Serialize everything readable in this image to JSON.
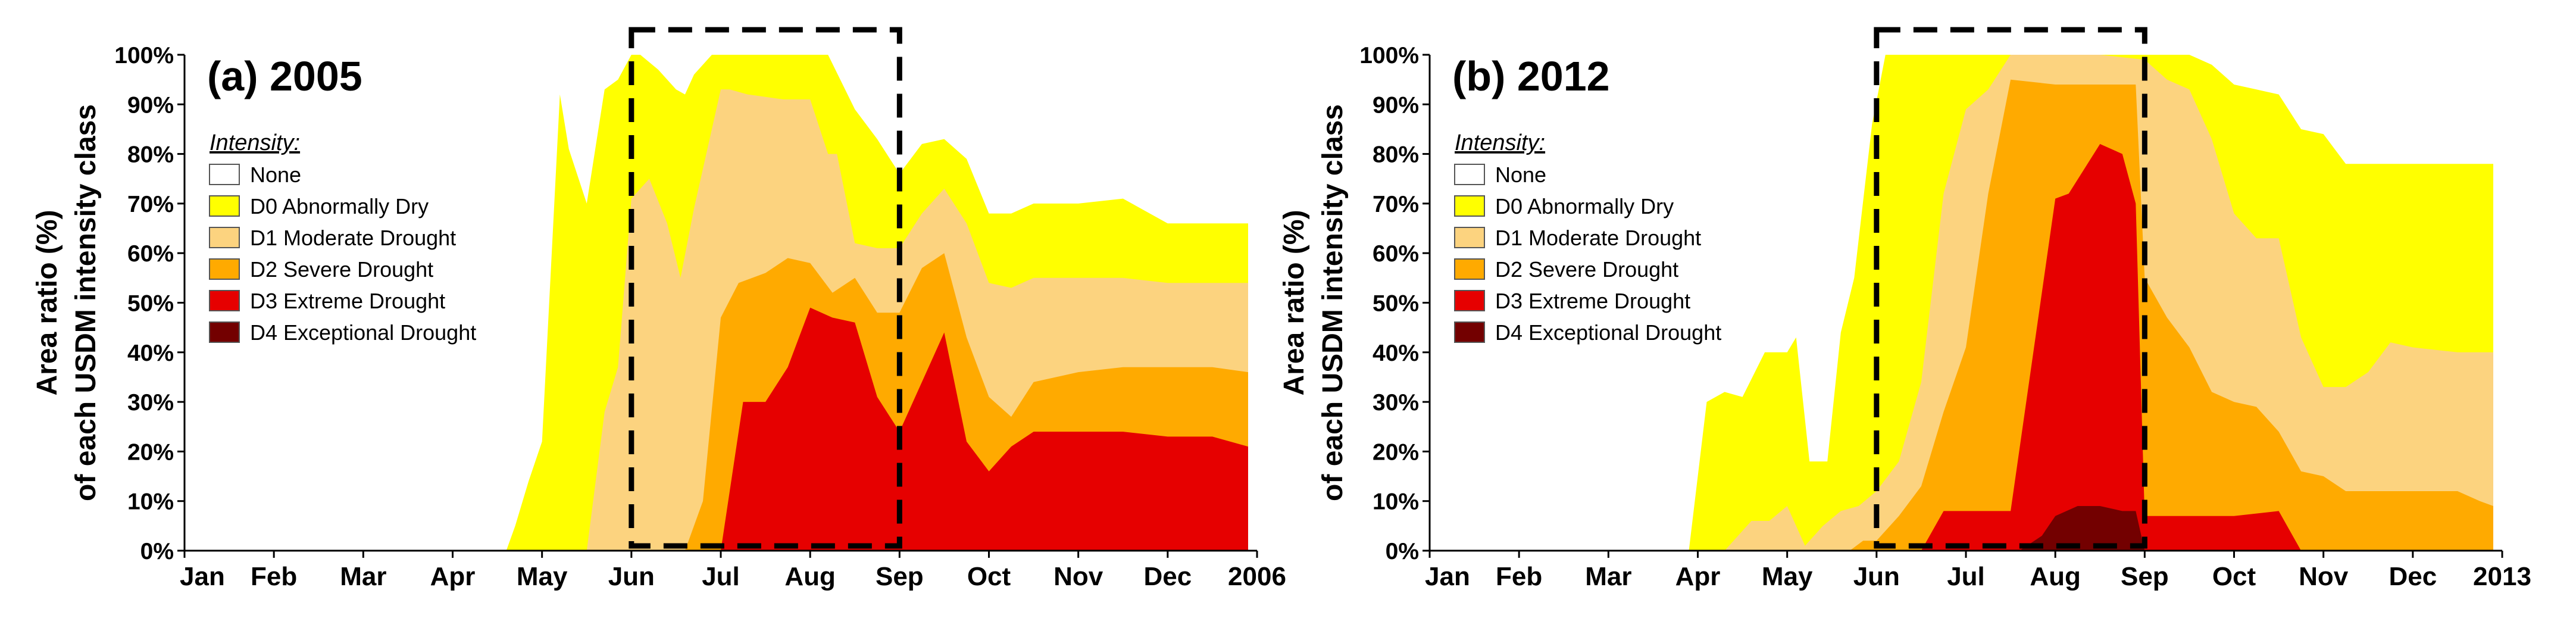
{
  "figure": {
    "ylabel_line1": "Area ratio (%)",
    "ylabel_line2": "of each USDM intensity class"
  },
  "chart_data": [
    {
      "type": "area",
      "title": "(a) 2005",
      "ylim": [
        0,
        100
      ],
      "yticks": [
        "0%",
        "10%",
        "20%",
        "30%",
        "40%",
        "50%",
        "60%",
        "70%",
        "80%",
        "90%",
        "100%"
      ],
      "xlim": [
        0,
        12
      ],
      "xticks": [
        {
          "pos": 0,
          "label": "Jan"
        },
        {
          "pos": 1,
          "label": "Feb"
        },
        {
          "pos": 2,
          "label": "Mar"
        },
        {
          "pos": 3,
          "label": "Apr"
        },
        {
          "pos": 4,
          "label": "May"
        },
        {
          "pos": 5,
          "label": "Jun"
        },
        {
          "pos": 6,
          "label": "Jul"
        },
        {
          "pos": 7,
          "label": "Aug"
        },
        {
          "pos": 8,
          "label": "Sep"
        },
        {
          "pos": 9,
          "label": "Oct"
        },
        {
          "pos": 10,
          "label": "Nov"
        },
        {
          "pos": 11,
          "label": "Dec"
        },
        {
          "pos": 12,
          "label": "2006"
        }
      ],
      "legend": {
        "title": "Intensity:",
        "placement": "top-left",
        "items": [
          {
            "label": "None",
            "color": "#ffffff"
          },
          {
            "label": "D0 Abnormally Dry",
            "color": "#ffff00"
          },
          {
            "label": "D1 Moderate Drought",
            "color": "#fcd37f"
          },
          {
            "label": "D2 Severe Drought",
            "color": "#ffaa00"
          },
          {
            "label": "D3 Extreme Drought",
            "color": "#e60000"
          },
          {
            "label": "D4 Exceptional Drought",
            "color": "#730000"
          }
        ]
      },
      "highlight_box": {
        "x_start": 5.0,
        "x_end": 8.0,
        "y_start": 0,
        "y_end": 100,
        "style": "dashed"
      },
      "series": [
        {
          "name": "D0 Abnormally Dry",
          "color": "#ffff00",
          "x": [
            3.6,
            3.7,
            3.85,
            4.0,
            4.2,
            4.3,
            4.5,
            4.7,
            4.85,
            5.0,
            5.1,
            5.3,
            5.5,
            5.6,
            5.7,
            5.9,
            6.1,
            6.5,
            6.9,
            7.2,
            7.5,
            7.75,
            8.0,
            8.25,
            8.5,
            8.75,
            9.0,
            9.25,
            9.5,
            10.0,
            10.5,
            11.0,
            11.5,
            11.9
          ],
          "y": [
            0,
            5,
            14,
            22,
            92,
            81,
            70,
            93,
            95,
            100,
            100,
            97,
            93,
            92,
            96,
            100,
            100,
            100,
            100,
            100,
            89,
            83,
            76,
            82,
            83,
            79,
            68,
            68,
            70,
            70,
            71,
            66,
            66,
            66
          ]
        },
        {
          "name": "D1 Moderate Drought",
          "color": "#fcd37f",
          "x": [
            4.0,
            4.3,
            4.5,
            4.7,
            4.85,
            5.0,
            5.2,
            5.4,
            5.55,
            5.7,
            6.0,
            6.1,
            6.3,
            6.7,
            7.0,
            7.2,
            7.3,
            7.5,
            7.75,
            8.0,
            8.25,
            8.5,
            8.75,
            9.0,
            9.25,
            9.5,
            10.0,
            10.5,
            11.0,
            11.5,
            11.9
          ],
          "y": [
            0,
            0,
            0,
            28,
            37,
            71,
            75,
            66,
            55,
            69,
            93,
            93,
            92,
            91,
            91,
            80,
            80,
            62,
            61,
            61,
            68,
            73,
            66,
            54,
            53,
            55,
            55,
            55,
            54,
            54,
            54
          ]
        },
        {
          "name": "D2 Severe Drought",
          "color": "#ffaa00",
          "x": [
            5.5,
            5.6,
            5.8,
            6.0,
            6.2,
            6.5,
            6.75,
            7.0,
            7.25,
            7.5,
            7.75,
            8.0,
            8.25,
            8.5,
            8.75,
            9.0,
            9.25,
            9.5,
            10.0,
            10.5,
            11.0,
            11.5,
            11.9
          ],
          "y": [
            0,
            0,
            10,
            47,
            54,
            56,
            59,
            58,
            52,
            55,
            48,
            48,
            57,
            60,
            43,
            31,
            27,
            34,
            36,
            37,
            37,
            37,
            36
          ]
        },
        {
          "name": "D3 Extreme Drought",
          "color": "#e60000",
          "x": [
            5.9,
            6.0,
            6.25,
            6.5,
            6.75,
            7.0,
            7.25,
            7.5,
            7.75,
            8.0,
            8.25,
            8.5,
            8.75,
            9.0,
            9.25,
            9.5,
            10.0,
            10.5,
            11.0,
            11.5,
            11.9
          ],
          "y": [
            0,
            0,
            30,
            30,
            37,
            49,
            47,
            46,
            31,
            24,
            34,
            44,
            22,
            16,
            21,
            24,
            24,
            24,
            23,
            23,
            21
          ]
        }
      ]
    },
    {
      "type": "area",
      "title": "(b) 2012",
      "ylim": [
        0,
        100
      ],
      "yticks": [
        "0%",
        "10%",
        "20%",
        "30%",
        "40%",
        "50%",
        "60%",
        "70%",
        "80%",
        "90%",
        "100%"
      ],
      "xlim": [
        0,
        12
      ],
      "xticks": [
        {
          "pos": 0,
          "label": "Jan"
        },
        {
          "pos": 1,
          "label": "Feb"
        },
        {
          "pos": 2,
          "label": "Mar"
        },
        {
          "pos": 3,
          "label": "Apr"
        },
        {
          "pos": 4,
          "label": "May"
        },
        {
          "pos": 5,
          "label": "Jun"
        },
        {
          "pos": 6,
          "label": "Jul"
        },
        {
          "pos": 7,
          "label": "Aug"
        },
        {
          "pos": 8,
          "label": "Sep"
        },
        {
          "pos": 9,
          "label": "Oct"
        },
        {
          "pos": 10,
          "label": "Nov"
        },
        {
          "pos": 11,
          "label": "Dec"
        },
        {
          "pos": 12,
          "label": "2013"
        }
      ],
      "legend": {
        "title": "Intensity:",
        "placement": "top-left",
        "items": [
          {
            "label": "None",
            "color": "#ffffff"
          },
          {
            "label": "D0 Abnormally Dry",
            "color": "#ffff00"
          },
          {
            "label": "D1 Moderate Drought",
            "color": "#fcd37f"
          },
          {
            "label": "D2 Severe Drought",
            "color": "#ffaa00"
          },
          {
            "label": "D3 Extreme Drought",
            "color": "#e60000"
          },
          {
            "label": "D4 Exceptional Drought",
            "color": "#730000"
          }
        ]
      },
      "highlight_box": {
        "x_start": 5.0,
        "x_end": 8.0,
        "y_start": 0,
        "y_end": 100,
        "style": "dashed"
      },
      "series": [
        {
          "name": "D0 Abnormally Dry",
          "color": "#ffff00",
          "x": [
            2.8,
            2.9,
            3.1,
            3.3,
            3.5,
            3.75,
            4.0,
            4.1,
            4.25,
            4.45,
            4.6,
            4.75,
            4.95,
            5.1,
            5.3,
            5.5,
            6.0,
            7.0,
            8.0,
            8.5,
            8.75,
            9.0,
            9.25,
            9.5,
            9.75,
            10.0,
            10.25,
            10.5,
            11.0,
            11.5,
            11.9
          ],
          "y": [
            0,
            0,
            30,
            32,
            31,
            40,
            40,
            43,
            18,
            18,
            44,
            55,
            86,
            100,
            100,
            100,
            100,
            100,
            100,
            100,
            98,
            94,
            93,
            92,
            85,
            84,
            78,
            78,
            78,
            78,
            78
          ]
        },
        {
          "name": "D1 Moderate Drought",
          "color": "#fcd37f",
          "x": [
            3.1,
            3.3,
            3.6,
            3.8,
            4.0,
            4.2,
            4.4,
            4.6,
            4.8,
            5.0,
            5.25,
            5.5,
            5.75,
            6.0,
            6.25,
            6.5,
            7.0,
            7.5,
            8.0,
            8.25,
            8.5,
            8.75,
            9.0,
            9.25,
            9.5,
            9.75,
            10.0,
            10.25,
            10.5,
            10.75,
            11.0,
            11.5,
            11.9
          ],
          "y": [
            0,
            0,
            6,
            6,
            9,
            1,
            5,
            8,
            9,
            12,
            18,
            34,
            72,
            89,
            93,
            100,
            100,
            100,
            99,
            95,
            93,
            83,
            68,
            63,
            63,
            43,
            33,
            33,
            36,
            42,
            41,
            40,
            40
          ]
        },
        {
          "name": "D2 Severe Drought",
          "color": "#ffaa00",
          "x": [
            4.7,
            4.85,
            5.0,
            5.25,
            5.5,
            5.75,
            6.0,
            6.25,
            6.5,
            7.0,
            7.5,
            7.9,
            8.0,
            8.25,
            8.5,
            8.75,
            9.0,
            9.25,
            9.5,
            9.75,
            10.0,
            10.25,
            10.5,
            11.0,
            11.5,
            11.75,
            11.9
          ],
          "y": [
            0,
            2,
            2,
            7,
            13,
            28,
            41,
            72,
            95,
            94,
            94,
            94,
            55,
            47,
            41,
            32,
            30,
            29,
            24,
            16,
            15,
            12,
            12,
            12,
            12,
            10,
            9
          ]
        },
        {
          "name": "D3 Extreme Drought",
          "color": "#e60000",
          "x": [
            5.5,
            5.75,
            6.0,
            6.5,
            7.0,
            7.15,
            7.5,
            7.75,
            7.9,
            8.0,
            8.25,
            8.5,
            9.0,
            9.5,
            9.75,
            10.0
          ],
          "y": [
            0,
            8,
            8,
            8,
            71,
            72,
            82,
            80,
            70,
            7,
            7,
            7,
            7,
            8,
            0,
            0
          ]
        },
        {
          "name": "D4 Exceptional Drought",
          "color": "#730000",
          "x": [
            6.6,
            6.85,
            7.0,
            7.25,
            7.5,
            7.75,
            7.9,
            8.0
          ],
          "y": [
            0,
            3,
            7,
            9,
            9,
            8,
            8,
            0
          ]
        }
      ]
    }
  ]
}
